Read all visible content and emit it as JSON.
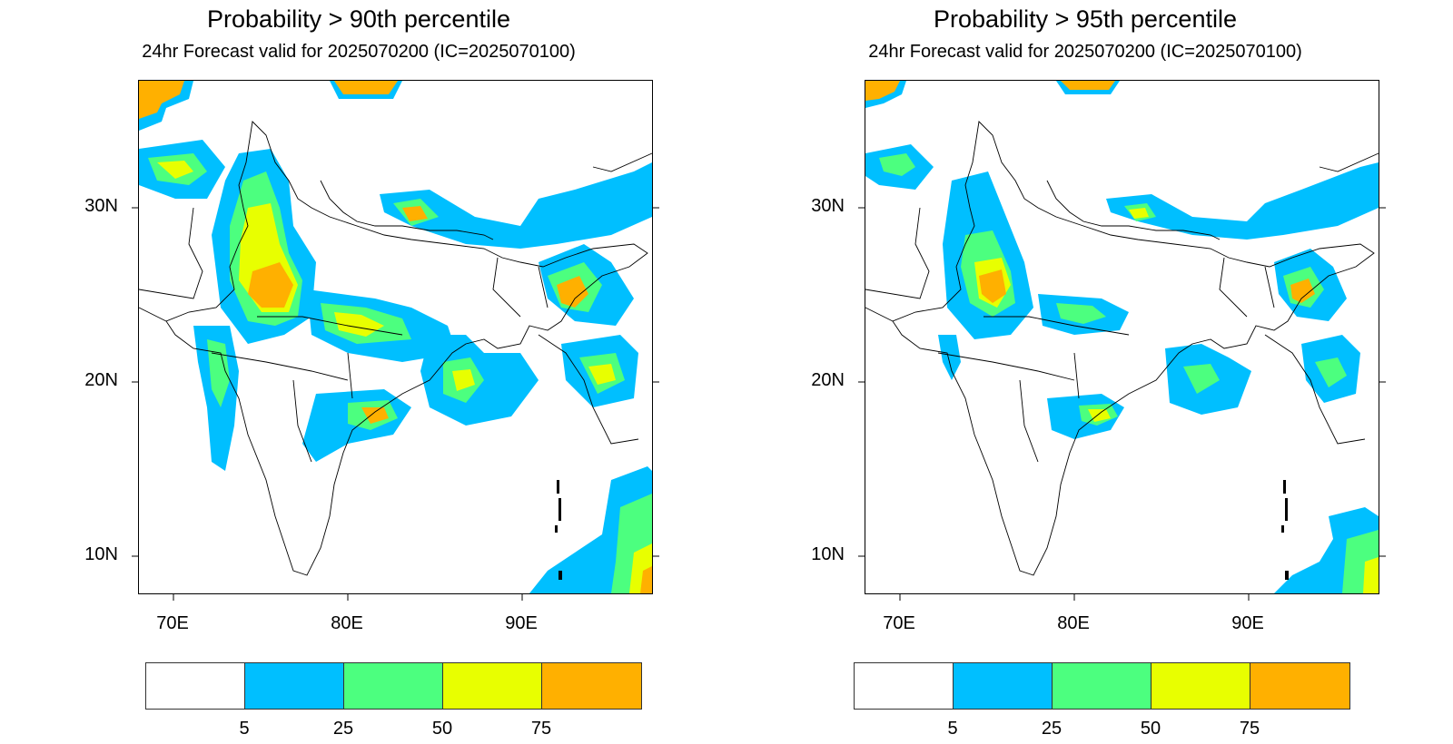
{
  "panels": [
    {
      "title": "Probability > 90th percentile",
      "subtitle": "24hr Forecast valid for 2025070200 (IC=2025070100)",
      "lat_labels": [
        "30N",
        "20N",
        "10N"
      ],
      "lon_labels": [
        "70E",
        "80E",
        "90E"
      ],
      "colorbar_labels": [
        "5",
        "25",
        "50",
        "75"
      ]
    },
    {
      "title": "Probability > 95th percentile",
      "subtitle": "24hr Forecast valid for 2025070200 (IC=2025070100)",
      "lat_labels": [
        "30N",
        "20N",
        "10N"
      ],
      "lon_labels": [
        "70E",
        "80E",
        "90E"
      ],
      "colorbar_labels": [
        "5",
        "25",
        "50",
        "75"
      ]
    }
  ],
  "colorbar_colors": [
    "#ffffff",
    "#00bfff",
    "#4cff7f",
    "#e8ff00",
    "#ffb000"
  ],
  "map_extent": {
    "lon": [
      68,
      97.5
    ],
    "lat": [
      8,
      37
    ]
  },
  "legend_levels": [
    5,
    25,
    50,
    75
  ]
}
